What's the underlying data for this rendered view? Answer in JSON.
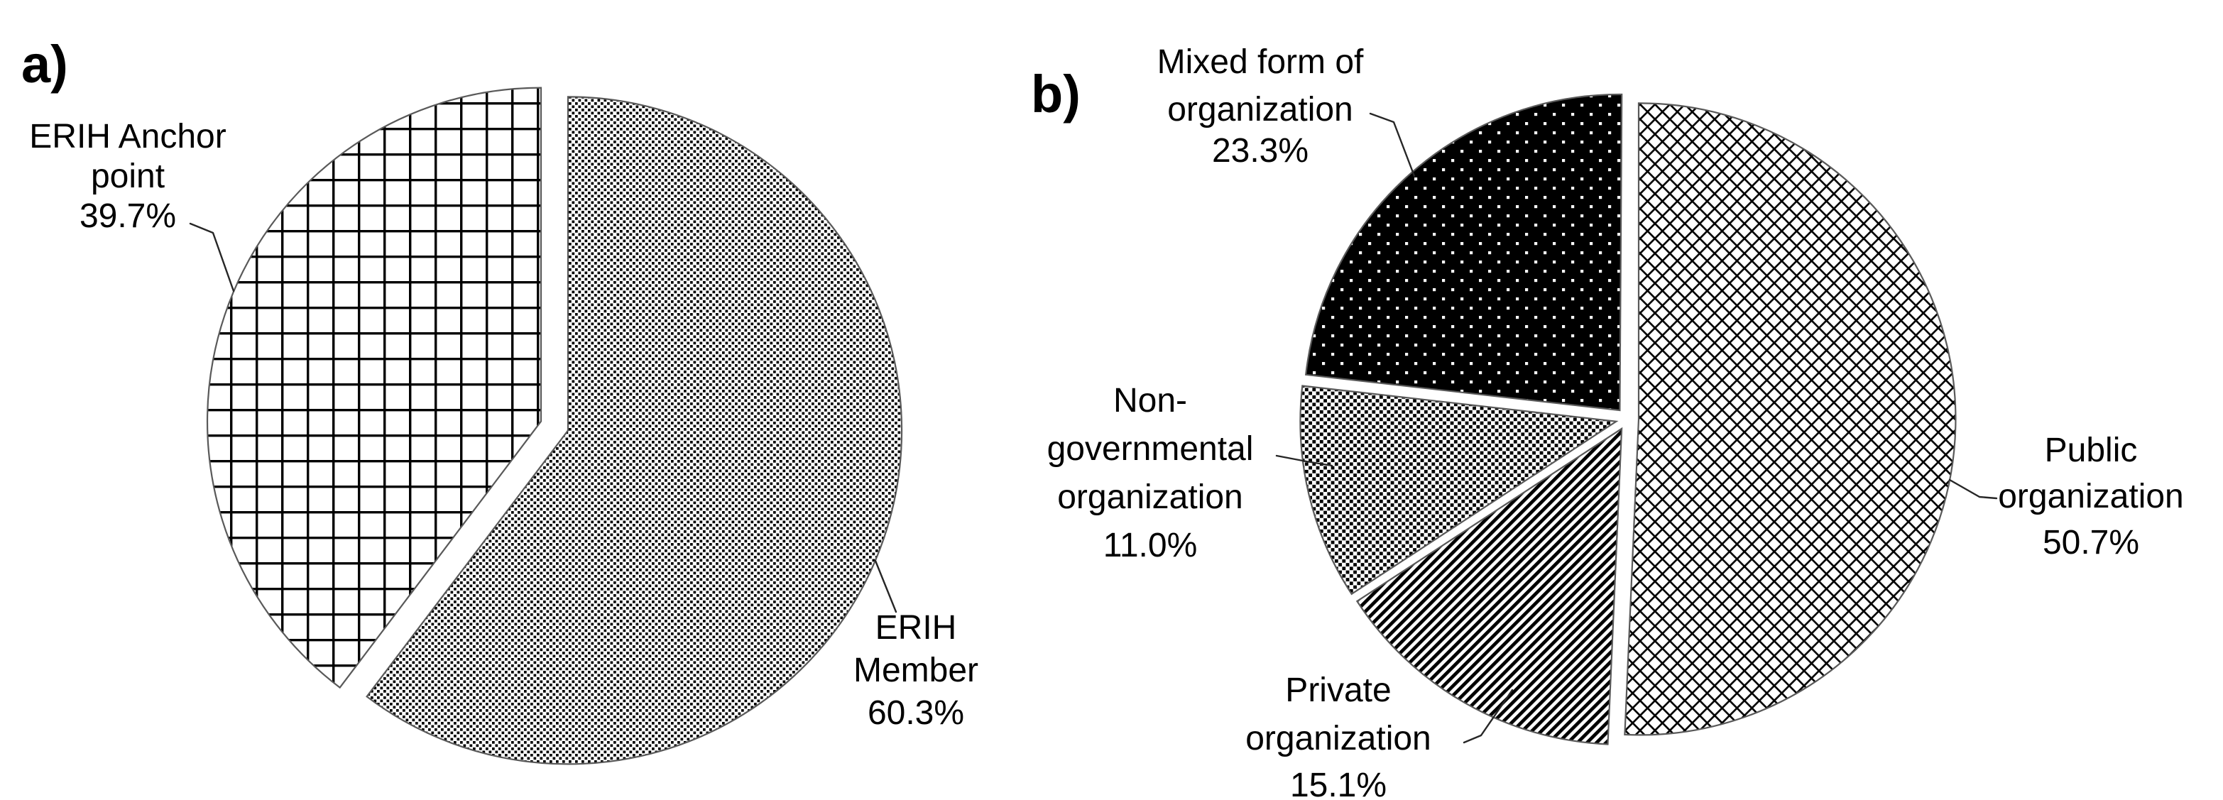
{
  "figure_background": "#ffffff",
  "ink_color": "#000000",
  "chart_data": [
    {
      "type": "pie",
      "panel_label": "a)",
      "title": "",
      "legend": "none",
      "start_angle_deg": 0,
      "direction": "clockwise",
      "exploded": true,
      "style": "black-and-white pattern fills with callout leader lines",
      "slices": [
        {
          "label": "ERIH Member",
          "value_pct": 60.3,
          "data_label": "ERIH Member 60.3%",
          "label_lines": [
            "ERIH",
            "Member",
            "60.3%"
          ],
          "pattern": "fine-diagonal-dotted",
          "fill_description": "white with fine dotted downward-diagonal hatch"
        },
        {
          "label": "ERIH Anchor point",
          "value_pct": 39.7,
          "data_label": "ERIH Anchor point 39.7%",
          "label_lines": [
            "ERIH Anchor",
            "point",
            "39.7%"
          ],
          "pattern": "square-grid",
          "fill_description": "white with black square-grid crosshatch"
        }
      ]
    },
    {
      "type": "pie",
      "panel_label": "b)",
      "title": "",
      "legend": "none",
      "start_angle_deg": 0,
      "direction": "clockwise",
      "exploded": true,
      "style": "black-and-white pattern fills with callout leader lines",
      "slices": [
        {
          "label": "Public organization",
          "value_pct": 50.7,
          "data_label": "Public organization 50.7%",
          "label_lines": [
            "Public",
            "organization",
            "50.7%"
          ],
          "pattern": "diagonal-crosshatch",
          "fill_description": "white with diagonal diamond crosshatch"
        },
        {
          "label": "Private organization",
          "value_pct": 15.1,
          "data_label": "Private organization 15.1%",
          "label_lines": [
            "Private",
            "organization",
            "15.1%"
          ],
          "pattern": "upward-diagonal-stripes",
          "fill_description": "bold upward diagonal stripes"
        },
        {
          "label": "Non-governmental organization",
          "value_pct": 11.0,
          "data_label": "Non-governmental organization 11.0%",
          "label_lines": [
            "Non-",
            "governmental",
            "organization",
            "11.0%"
          ],
          "pattern": "dense-dot-grid",
          "fill_description": "dense black square dots on white"
        },
        {
          "label": "Mixed form of organization",
          "value_pct": 23.3,
          "data_label": "Mixed form of organization 23.3%",
          "label_lines": [
            "Mixed form of",
            "organization",
            "23.3%"
          ],
          "pattern": "black-with-white-dots",
          "fill_description": "solid black with small white dots"
        }
      ]
    }
  ]
}
